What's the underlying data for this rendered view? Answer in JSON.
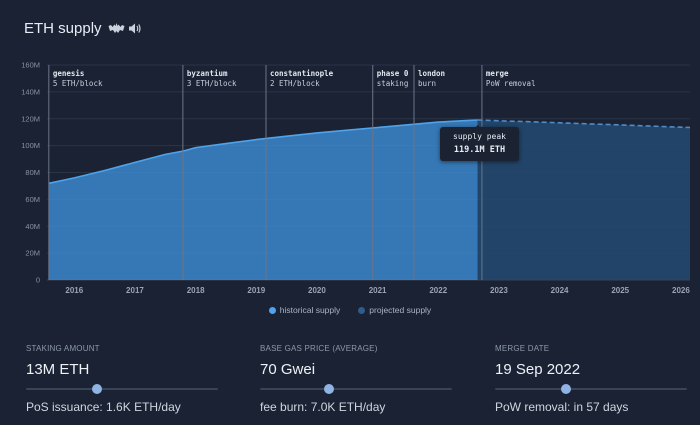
{
  "header": {
    "title": "ETH supply"
  },
  "colors": {
    "historical": "#3d8fd6",
    "historical_line": "#4ea3ea",
    "projected": "#234a72",
    "projected_line": "#4e8cc9",
    "grid": "#2a3447",
    "annotation_line": "#6c7689",
    "thumb": "#8fb4e3"
  },
  "chart_data": {
    "type": "area",
    "title": "ETH supply",
    "xlabel": "",
    "ylabel": "",
    "xlim": [
      2015.55,
      2026.15
    ],
    "ylim": [
      0,
      160
    ],
    "y_ticks": [
      0,
      20,
      40,
      60,
      80,
      100,
      120,
      140,
      160
    ],
    "y_tick_labels": [
      "0",
      "20M",
      "40M",
      "60M",
      "80M",
      "100M",
      "120M",
      "140M",
      "160M"
    ],
    "x_ticks": [
      2016,
      2017,
      2018,
      2019,
      2020,
      2021,
      2022,
      2023,
      2024,
      2025,
      2026
    ],
    "x_tick_labels": [
      "2016",
      "2017",
      "2018",
      "2019",
      "2020",
      "2021",
      "2022",
      "2023",
      "2024",
      "2025",
      "2026"
    ],
    "series": [
      {
        "name": "historical supply",
        "x": [
          2015.58,
          2016.0,
          2016.5,
          2017.0,
          2017.5,
          2017.8,
          2018.0,
          2018.5,
          2019.0,
          2019.5,
          2020.0,
          2020.5,
          2021.0,
          2021.5,
          2022.0,
          2022.5,
          2022.65
        ],
        "values": [
          72.0,
          76.0,
          81.5,
          87.5,
          93.5,
          96.0,
          98.5,
          101.5,
          104.5,
          107.0,
          109.5,
          111.5,
          113.5,
          115.5,
          117.5,
          118.8,
          119.1
        ]
      },
      {
        "name": "projected supply",
        "x": [
          2022.65,
          2023.0,
          2023.5,
          2024.0,
          2024.5,
          2025.0,
          2025.5,
          2026.15
        ],
        "values": [
          119.1,
          118.5,
          117.8,
          117.0,
          116.2,
          115.4,
          114.5,
          113.5
        ]
      }
    ],
    "annotations": [
      {
        "x": 2015.58,
        "title": "genesis",
        "sub": "5 ETH/block"
      },
      {
        "x": 2017.79,
        "title": "byzantium",
        "sub": "3 ETH/block"
      },
      {
        "x": 2019.16,
        "title": "constantinople",
        "sub": "2 ETH/block"
      },
      {
        "x": 2020.92,
        "title": "phase 0",
        "sub": "staking"
      },
      {
        "x": 2021.6,
        "title": "london",
        "sub": "burn"
      },
      {
        "x": 2022.72,
        "title": "merge",
        "sub": "PoW removal"
      }
    ],
    "tooltip": {
      "label": "supply peak",
      "value": "119.1M ETH"
    },
    "legend": [
      "historical supply",
      "projected supply"
    ]
  },
  "controls": [
    {
      "label": "STAKING AMOUNT",
      "value": "13M ETH",
      "slider_fraction": 0.37,
      "note": "PoS issuance: 1.6K ETH/day"
    },
    {
      "label": "BASE GAS PRICE (AVERAGE)",
      "value": "70 Gwei",
      "slider_fraction": 0.36,
      "note": "fee burn: 7.0K ETH/day"
    },
    {
      "label": "MERGE DATE",
      "value": "19 Sep 2022",
      "slider_fraction": 0.37,
      "note": "PoW removal: in 57 days"
    }
  ]
}
